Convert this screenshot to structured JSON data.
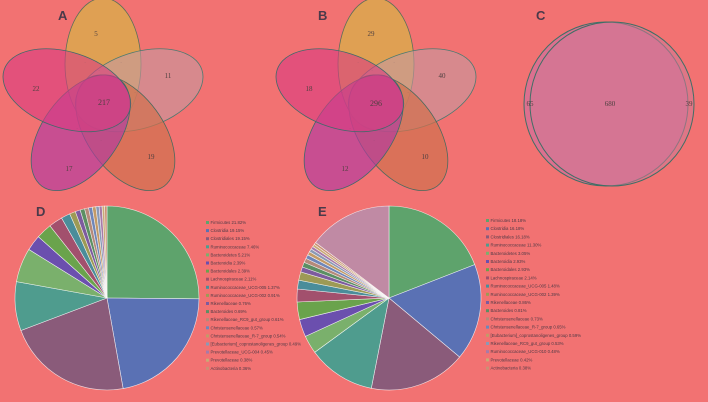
{
  "chart_data": [
    {
      "panel": "A",
      "type": "venn",
      "sets": [
        "",
        "",
        "",
        "",
        ""
      ],
      "set_labels": [
        "",
        "",
        "",
        "",
        ""
      ],
      "regions": {
        "unique": [
          5,
          11,
          19,
          17,
          22
        ],
        "core": 217,
        "pair_small": [
          "",
          "",
          "",
          "",
          "",
          "",
          "",
          "",
          "",
          ""
        ]
      }
    },
    {
      "panel": "B",
      "type": "venn",
      "sets": [
        "",
        "",
        "",
        "",
        ""
      ],
      "set_labels": [
        "",
        "",
        "",
        "",
        ""
      ],
      "regions": {
        "unique": [
          29,
          40,
          10,
          12,
          18
        ],
        "core": 296,
        "pair_small": [
          "",
          "",
          "",
          "",
          "",
          "",
          "",
          "",
          "",
          ""
        ]
      }
    },
    {
      "panel": "C",
      "type": "venn",
      "sets": [
        "",
        ""
      ],
      "set_labels": [
        "",
        ""
      ],
      "regions": {
        "left_only": 65,
        "both": 680,
        "right_only": 39
      }
    },
    {
      "panel": "D",
      "type": "pie",
      "categories": [
        "Firmicutes",
        "Clostridia",
        "Clostridiales",
        "Ruminococcaceae",
        "Bacteroidetes",
        "Bacteroidia",
        "Bacteroidales",
        "Lachnospiraceae",
        "Ruminococcaceae_UCG-005",
        "Ruminococcaceae_UCG-002",
        "Rikenellaceae",
        "Bacteroides",
        "Rikenellaceae_RC9_gut_group",
        "Christensenellaceae",
        "Christensenellaceae_R-7_group",
        "[Eubacterium]_coprostanoligenes_group",
        "Prevotellaceae_UCG-004",
        "Prevotellaceae",
        "Actinobacteria"
      ],
      "legend_text": [
        "Firmicutes 21.82%",
        "Clostridia 19.15%",
        "Clostridiales 19.15%",
        "Ruminococcaceae 7.46%",
        "Bacteroidetes 5.21%",
        "Bacteroidia 2.39%",
        "Bacteroidales 2.39%",
        "Lachnospiraceae 2.11%",
        "Ruminococcaceae_UCG-005 1.37%",
        "Ruminococcaceae_UCG-002 0.91%",
        "Rikenellaceae 0.76%",
        "Bacteroides 0.69%",
        "Rikenellaceae_RC9_gut_group 0.61%",
        "Christensenellaceae 0.57%",
        "Christensenellaceae_R-7_group 0.54%",
        "[Eubacterium]_coprostanoligenes_group 0.49%",
        "Prevotellaceae_UCG-004 0.45%",
        "Prevotellaceae 0.38%",
        "Actinobacteria 0.36%"
      ],
      "values": [
        21.82,
        19.15,
        19.15,
        7.46,
        5.21,
        2.39,
        2.39,
        2.11,
        1.37,
        0.91,
        0.76,
        0.69,
        0.61,
        0.57,
        0.54,
        0.49,
        0.45,
        0.38,
        0.36
      ],
      "colors": [
        "#5ea36c",
        "#5a71b4",
        "#8a5b7a",
        "#4f9c8e",
        "#7ab06c",
        "#6b4fae",
        "#6aa34c",
        "#a2506d",
        "#4a8d9a",
        "#9d9a55",
        "#7d5b9e",
        "#5b8f63",
        "#b58a7a",
        "#6f86b8",
        "#c29a68",
        "#8a9ab6",
        "#a77aa8",
        "#c9aa76",
        "#c99074"
      ]
    },
    {
      "panel": "E",
      "type": "pie",
      "categories": [
        "Firmicutes",
        "Clostridia",
        "Clostridiales",
        "Ruminococcaceae",
        "Bacteroidetes",
        "Bacteroidia",
        "Bacteroidales",
        "Lachnospiraceae",
        "Ruminococcaceae_UCG-005",
        "Ruminococcaceae_UCG-002",
        "Rikenellaceae",
        "Bacteroides",
        "Christensenellaceae",
        "Christensenellaceae_R-7_group",
        "[Eubacterium]_coprostanoligenes_group",
        "Rikenellaceae_RC9_gut_group",
        "Ruminococcaceae_UCG-010",
        "Prevotellaceae",
        "Actinobacteria"
      ],
      "legend_text": [
        "Firmicutes 18.18%",
        "Clostridia 16.18%",
        "Clostridiales 16.18%",
        "Ruminococcaceae 11.30%",
        "Bacteroidetes 3.05%",
        "Bacteroidia 2.93%",
        "Bacteroidales 2.93%",
        "Lachnospiraceae 2.14%",
        "Ruminococcaceae_UCG-005 1.48%",
        "Ruminococcaceae_UCG-002 1.39%",
        "Rikenellaceae 0.86%",
        "Bacteroides 0.81%",
        "Christensenellaceae 0.73%",
        "Christensenellaceae_R-7_group 0.65%",
        "[Eubacterium]_coprostanoligenes_group 0.59%",
        "Rikenellaceae_RC9_gut_group 0.53%",
        "Ruminococcaceae_UCG-010 0.48%",
        "Prevotellaceae 0.42%",
        "Actinobacteria 0.38%"
      ],
      "values": [
        18.18,
        16.18,
        16.18,
        11.3,
        3.05,
        2.93,
        2.93,
        2.14,
        1.48,
        1.39,
        0.86,
        0.81,
        0.73,
        0.65,
        0.59,
        0.53,
        0.48,
        0.42,
        0.38
      ],
      "colors": [
        "#5ea36c",
        "#5a71b4",
        "#8a5b7a",
        "#4f9c8e",
        "#7ab06c",
        "#6b4fae",
        "#6aa34c",
        "#a2506d",
        "#4a8d9a",
        "#9d9a55",
        "#7d5b9e",
        "#5b8f63",
        "#b58a7a",
        "#6f86b8",
        "#c29a68",
        "#8a9ab6",
        "#a77aa8",
        "#c9aa76",
        "#c99074"
      ],
      "other_value": 14.0,
      "other_color": "#c08aa4"
    }
  ],
  "panel_letters": {
    "a": "A",
    "b": "B",
    "c": "C",
    "d": "D",
    "e": "E"
  },
  "venn_a": {
    "u1": "5",
    "u2": "11",
    "u3": "19",
    "u4": "17",
    "u5": "22",
    "core": "217"
  },
  "venn_b": {
    "u1": "29",
    "u2": "40",
    "u3": "10",
    "u4": "12",
    "u5": "18",
    "core": "296"
  },
  "venn_c": {
    "left": "65",
    "both": "680",
    "right": "39"
  }
}
